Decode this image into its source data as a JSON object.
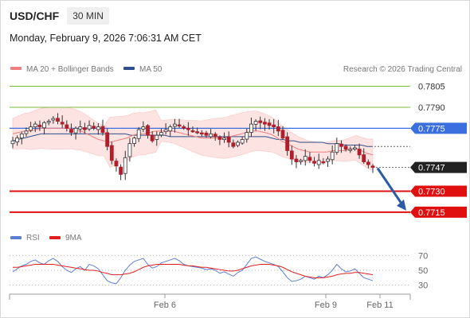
{
  "header": {
    "symbol": "USD/CHF",
    "timeframe": "30 MIN",
    "timestamp": "Monday, February 9, 2026 7:06:31 AM CET"
  },
  "legend": {
    "ma20_label": "MA 20 + Bollinger Bands",
    "ma50_label": "MA 50",
    "credit": "Research © 2026 Trading Central",
    "rsi_label": "RSI",
    "rsi_ma_label": "9MA"
  },
  "colors": {
    "ma20": "#f08080",
    "ma50": "#2d4f8f",
    "bands_fill": "#fde3e1",
    "candle": "#b01e2c",
    "resistance": "#7cbf3a",
    "pivot": "#3b6fe0",
    "support": "#e01010",
    "current": "#222222",
    "arrow": "#2b5aa8",
    "rsi": "#5b7fd6",
    "rsi_ma": "#e02020"
  },
  "chart_data": [
    {
      "type": "candlestick",
      "title": "USD/CHF",
      "timeframe": "30 MIN",
      "x_tick_labels": [
        "Feb 6",
        "Feb 9",
        "Feb 11"
      ],
      "ylim": [
        0.7707,
        0.7811
      ],
      "levels": [
        {
          "value": 0.7805,
          "label": "0.7805",
          "kind": "resistance"
        },
        {
          "value": 0.779,
          "label": "0.7790",
          "kind": "resistance"
        },
        {
          "value": 0.7775,
          "label": "0.7775",
          "kind": "pivot"
        },
        {
          "value": 0.7747,
          "label": "0.7747",
          "kind": "current"
        },
        {
          "value": 0.773,
          "label": "0.7730",
          "kind": "support"
        },
        {
          "value": 0.7715,
          "label": "0.7715",
          "kind": "support"
        }
      ],
      "last_price": 0.7747,
      "forecast_arrow": {
        "from": 0.7747,
        "to": 0.7715
      },
      "close": [
        0.7766,
        0.7768,
        0.7771,
        0.7773,
        0.7776,
        0.7778,
        0.7776,
        0.7779,
        0.778,
        0.7782,
        0.778,
        0.7778,
        0.7775,
        0.7772,
        0.7775,
        0.7776,
        0.7774,
        0.7777,
        0.7775,
        0.7776,
        0.7772,
        0.7762,
        0.7752,
        0.7748,
        0.7742,
        0.7754,
        0.7764,
        0.7768,
        0.7774,
        0.7776,
        0.777,
        0.7766,
        0.777,
        0.7772,
        0.7774,
        0.7776,
        0.7778,
        0.7777,
        0.7775,
        0.7774,
        0.7773,
        0.7772,
        0.7771,
        0.777,
        0.7771,
        0.7769,
        0.7767,
        0.7768,
        0.7765,
        0.7762,
        0.7765,
        0.7767,
        0.7772,
        0.7778,
        0.778,
        0.7779,
        0.7778,
        0.7777,
        0.7776,
        0.7773,
        0.7768,
        0.7759,
        0.7753,
        0.7751,
        0.7752,
        0.7755,
        0.7752,
        0.775,
        0.7752,
        0.7751,
        0.7753,
        0.7758,
        0.7764,
        0.7762,
        0.776,
        0.776,
        0.7761,
        0.7756,
        0.7751,
        0.7749,
        0.7747
      ],
      "ma20": [
        0.7771,
        0.7772,
        0.7773,
        0.7773,
        0.7774,
        0.7775,
        0.7775,
        0.7775,
        0.7775,
        0.7775,
        0.7775,
        0.7774,
        0.7773,
        0.7771,
        0.7769,
        0.7767,
        0.7766,
        0.7765,
        0.7766,
        0.7767,
        0.7768,
        0.777,
        0.7771,
        0.7771,
        0.7772,
        0.7773,
        0.7773,
        0.7773,
        0.7773,
        0.7772,
        0.7771,
        0.777,
        0.7769,
        0.7768,
        0.7768,
        0.7768,
        0.7768,
        0.7768,
        0.7769,
        0.777,
        0.7771,
        0.7772,
        0.7773,
        0.7773,
        0.7772,
        0.7771,
        0.7769,
        0.7766,
        0.7764,
        0.7762,
        0.776,
        0.7759,
        0.7758,
        0.7758,
        0.7758,
        0.7758,
        0.7759,
        0.7759,
        0.7759,
        0.776,
        0.7761,
        0.7759,
        0.7757,
        0.7756
      ],
      "ma50": [
        0.7766,
        0.7767,
        0.7768,
        0.7769,
        0.777,
        0.7771,
        0.7771,
        0.7771,
        0.7771,
        0.7771,
        0.7771,
        0.7771,
        0.7771,
        0.7771,
        0.7771,
        0.7771,
        0.7771,
        0.7771,
        0.7771,
        0.7771,
        0.7771,
        0.777,
        0.777,
        0.777,
        0.777,
        0.777,
        0.777,
        0.777,
        0.7769,
        0.7769,
        0.7769,
        0.7769,
        0.7769,
        0.7769,
        0.7769,
        0.7769,
        0.7769,
        0.7769,
        0.7769,
        0.7769,
        0.7769,
        0.7769,
        0.7769,
        0.7769,
        0.7769,
        0.7769,
        0.7768,
        0.7767,
        0.7767,
        0.7766,
        0.7766,
        0.7765,
        0.7765,
        0.7765,
        0.7765,
        0.7765,
        0.7764,
        0.7764,
        0.7764,
        0.7763,
        0.7763,
        0.7763,
        0.7763,
        0.7762,
        0.7762
      ]
    },
    {
      "type": "line",
      "title": "RSI",
      "ylim": [
        20,
        80
      ],
      "y_ticks": [
        70,
        50,
        30
      ],
      "series": [
        {
          "name": "RSI",
          "values": [
            48,
            52,
            56,
            58,
            62,
            64,
            60,
            58,
            63,
            66,
            62,
            55,
            50,
            47,
            52,
            55,
            50,
            58,
            56,
            52,
            44,
            36,
            33,
            32,
            40,
            50,
            57,
            62,
            64,
            66,
            58,
            53,
            55,
            60,
            62,
            64,
            66,
            63,
            58,
            56,
            55,
            54,
            53,
            51,
            52,
            50,
            46,
            48,
            45,
            42,
            47,
            50,
            58,
            66,
            68,
            65,
            62,
            60,
            58,
            55,
            48,
            40,
            35,
            36,
            38,
            42,
            40,
            38,
            42,
            40,
            44,
            50,
            58,
            52,
            48,
            49,
            52,
            46,
            40,
            38,
            36
          ]
        },
        {
          "name": "9MA",
          "values": [
            54,
            54,
            55,
            56,
            57,
            58,
            58,
            58,
            58,
            58,
            57,
            56,
            55,
            54,
            53,
            52,
            51,
            50,
            50,
            49,
            47,
            46,
            44,
            44,
            44,
            45,
            46,
            48,
            51,
            54,
            56,
            57,
            58,
            58,
            58,
            58,
            58,
            58,
            57,
            56,
            56,
            55,
            54,
            54,
            53,
            52,
            51,
            50,
            49,
            49,
            50,
            52,
            54,
            56,
            57,
            58,
            58,
            58,
            57,
            56,
            54,
            51,
            48,
            46,
            44,
            42,
            41,
            40,
            40,
            40,
            41,
            42,
            44,
            45,
            46,
            46,
            47,
            47,
            46,
            45,
            44
          ]
        }
      ]
    }
  ]
}
